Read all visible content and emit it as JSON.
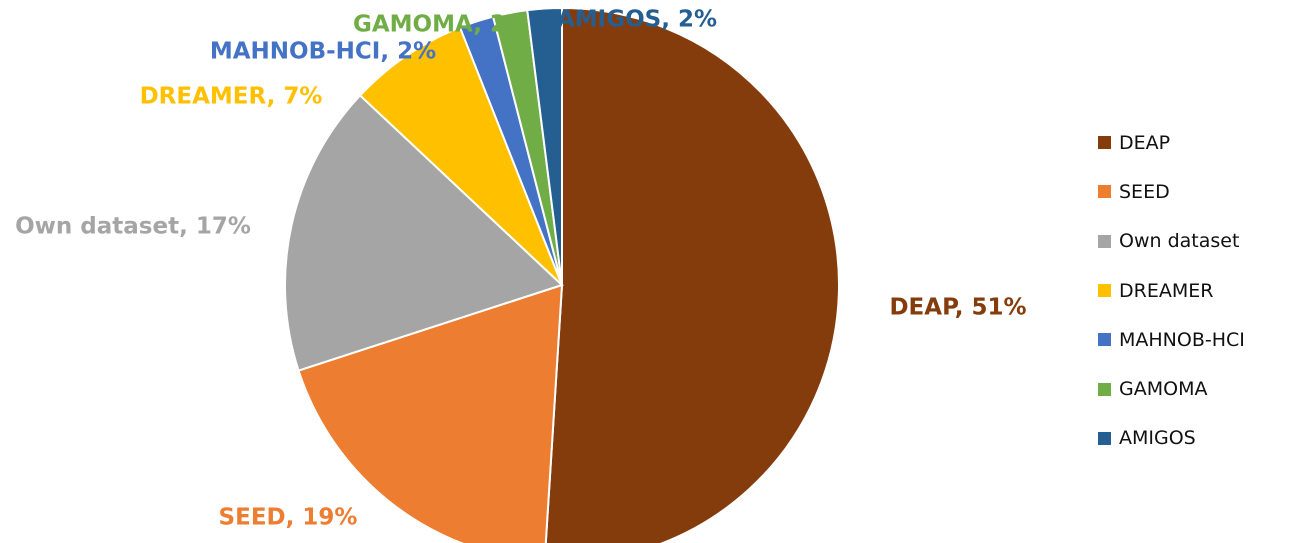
{
  "chart_data": {
    "type": "pie",
    "categories": [
      "DEAP",
      "SEED",
      "Own dataset",
      "DREAMER",
      "MAHNOB-HCI",
      "GAMOMA",
      "AMIGOS"
    ],
    "values": [
      51,
      19,
      17,
      7,
      2,
      2,
      2
    ],
    "colors": [
      "#843c0c",
      "#ed7d31",
      "#a5a5a5",
      "#ffc000",
      "#4472c4",
      "#70ad47",
      "#255e91"
    ],
    "data_labels": [
      "DEAP, 51%",
      "SEED, 19%",
      "Own dataset, 17%",
      "DREAMER, 7%",
      "MAHNOB-HCI, 2%",
      "GAMOMA, 2%",
      "AMIGOS, 2%"
    ],
    "legend": {
      "position": "right",
      "entries": [
        "DEAP",
        "SEED",
        "Own dataset",
        "DREAMER",
        "MAHNOB-HCI",
        "GAMOMA",
        "AMIGOS"
      ]
    }
  }
}
